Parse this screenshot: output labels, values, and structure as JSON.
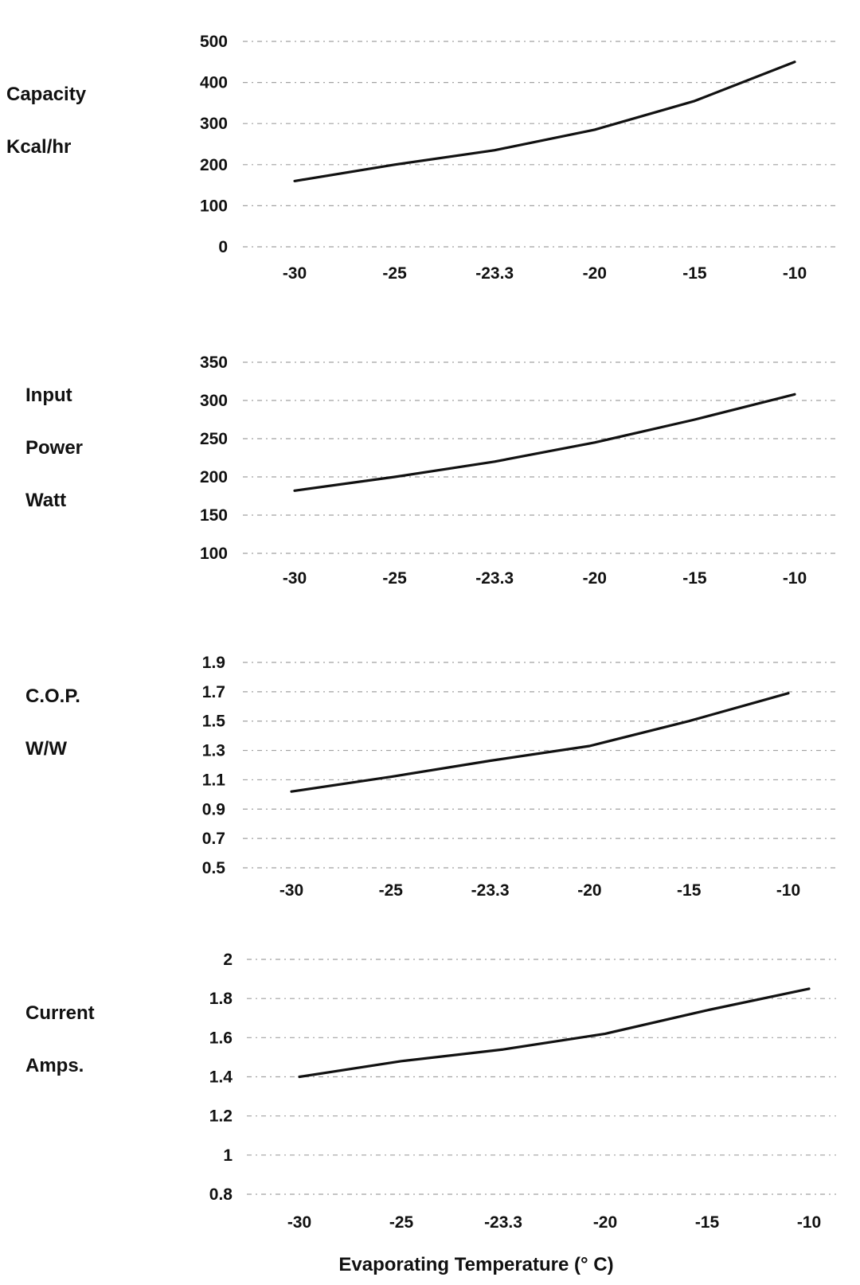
{
  "chart_data": [
    {
      "type": "line",
      "ylabel_lines": [
        "Capacity",
        "Kcal/hr"
      ],
      "categories": [
        "-30",
        "-25",
        "-23.3",
        "-20",
        "-15",
        "-10"
      ],
      "y_ticks": [
        "0",
        "100",
        "200",
        "300",
        "400",
        "500"
      ],
      "ylim": [
        0,
        500
      ],
      "values": [
        160,
        200,
        235,
        285,
        355,
        450
      ]
    },
    {
      "type": "line",
      "ylabel_lines": [
        "Input",
        "Power",
        "Watt"
      ],
      "categories": [
        "-30",
        "-25",
        "-23.3",
        "-20",
        "-15",
        "-10"
      ],
      "y_ticks": [
        "100",
        "150",
        "200",
        "250",
        "300",
        "350"
      ],
      "ylim": [
        100,
        350
      ],
      "values": [
        182,
        200,
        220,
        245,
        275,
        308
      ]
    },
    {
      "type": "line",
      "ylabel_lines": [
        "C.O.P.",
        "W/W"
      ],
      "categories": [
        "-30",
        "-25",
        "-23.3",
        "-20",
        "-15",
        "-10"
      ],
      "y_ticks": [
        "0.5",
        "0.7",
        "0.9",
        "1.1",
        "1.3",
        "1.5",
        "1.7",
        "1.9"
      ],
      "ylim": [
        0.5,
        1.9
      ],
      "values": [
        1.02,
        1.12,
        1.23,
        1.33,
        1.5,
        1.69
      ]
    },
    {
      "type": "line",
      "ylabel_lines": [
        "Current",
        "Amps."
      ],
      "categories": [
        "-30",
        "-25",
        "-23.3",
        "-20",
        "-15",
        "-10"
      ],
      "y_ticks": [
        "0.8",
        "1",
        "1.2",
        "1.4",
        "1.6",
        "1.8",
        "2"
      ],
      "ylim": [
        0.8,
        2.0
      ],
      "values": [
        1.4,
        1.48,
        1.54,
        1.62,
        1.74,
        1.85
      ]
    }
  ],
  "x_axis_title": "Evaporating Temperature (° C)"
}
